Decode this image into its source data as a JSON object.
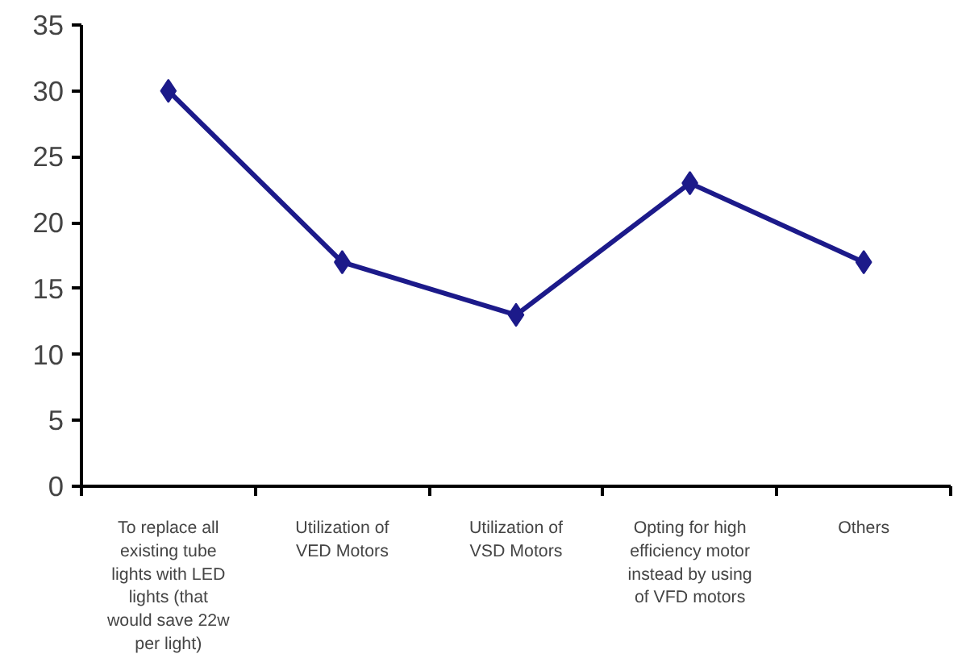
{
  "chart_data": {
    "type": "line",
    "categories": [
      "To replace all existing tube lights with LED lights (that would save 22w per light)",
      "Utilization of VED Motors",
      "Utilization of VSD Motors",
      "Opting for high efficiency motor instead by using of VFD motors",
      "Others"
    ],
    "series": [
      {
        "color": "#1c1a8a",
        "values": [
          30,
          17,
          13,
          23,
          17
        ]
      }
    ],
    "ylim": [
      0,
      35
    ],
    "yticks": [
      0,
      5,
      10,
      15,
      20,
      25,
      30,
      35
    ],
    "marker": "diamond",
    "line_style": "solid"
  }
}
